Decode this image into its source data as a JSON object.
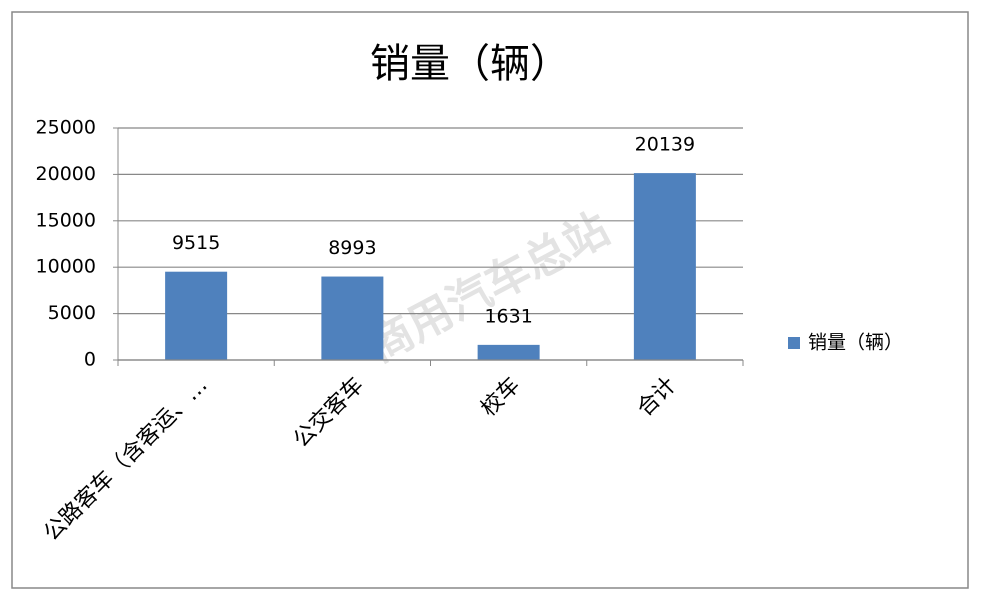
{
  "chart_data": {
    "type": "bar",
    "title": "销量（辆）",
    "categories": [
      "公路客车（含客运、…",
      "公交客车",
      "校车",
      "合计"
    ],
    "series": [
      {
        "name": "销量（辆）",
        "color": "#4f81bd",
        "values": [
          9515,
          8993,
          1631,
          20139
        ]
      }
    ],
    "ylim": [
      0,
      25000
    ],
    "yticks": [
      0,
      5000,
      10000,
      15000,
      20000,
      25000
    ],
    "grid": true,
    "legend": "right",
    "watermark": "商用汽车总站"
  }
}
